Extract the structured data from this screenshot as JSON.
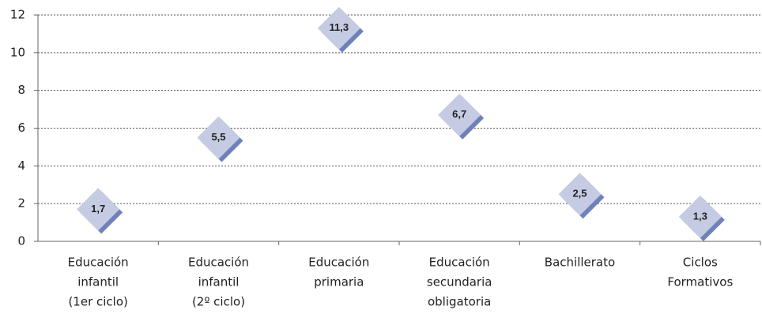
{
  "chart_data": {
    "type": "scatter",
    "categories": [
      [
        "Educación",
        "infantil",
        "(1er ciclo)"
      ],
      [
        "Educación",
        "infantil",
        "(2º ciclo)"
      ],
      [
        "Educación",
        "primaria"
      ],
      [
        "Educación",
        "secundaria",
        "obligatoria"
      ],
      [
        "Bachillerato"
      ],
      [
        "Ciclos",
        "Formativos"
      ]
    ],
    "values": [
      1.7,
      5.5,
      11.3,
      6.7,
      2.5,
      1.3
    ],
    "value_labels": [
      "1,7",
      "5,5",
      "11,3",
      "6,7",
      "2,5",
      "1,3"
    ],
    "color": "#c5cbe3",
    "shadow_color": "#6f82b8",
    "ylim": [
      0,
      12
    ],
    "yticks": [
      0,
      2,
      4,
      6,
      8,
      10,
      12
    ],
    "grid": true
  }
}
